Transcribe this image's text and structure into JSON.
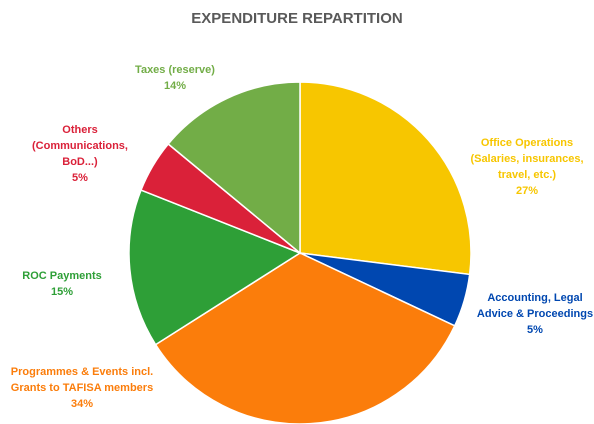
{
  "chart_data": {
    "type": "pie",
    "title": "EXPENDITURE REPARTITION",
    "categories": [
      "Office Operations (Salaries, insurances, travel, etc.)",
      "Accounting, Legal Advice & Proceedings",
      "Programmes & Events incl. Grants to TAFISA members",
      "ROC Payments",
      "Others (Communications, BoD...)",
      "Taxes (reserve)"
    ],
    "values": [
      27,
      5,
      34,
      15,
      5,
      14
    ],
    "value_labels": [
      "27%",
      "5%",
      "34%",
      "15%",
      "5%",
      "14%"
    ],
    "colors": [
      "#f7c600",
      "#0047b0",
      "#fb7d0b",
      "#2e9f37",
      "#da2139",
      "#72ad47"
    ]
  }
}
